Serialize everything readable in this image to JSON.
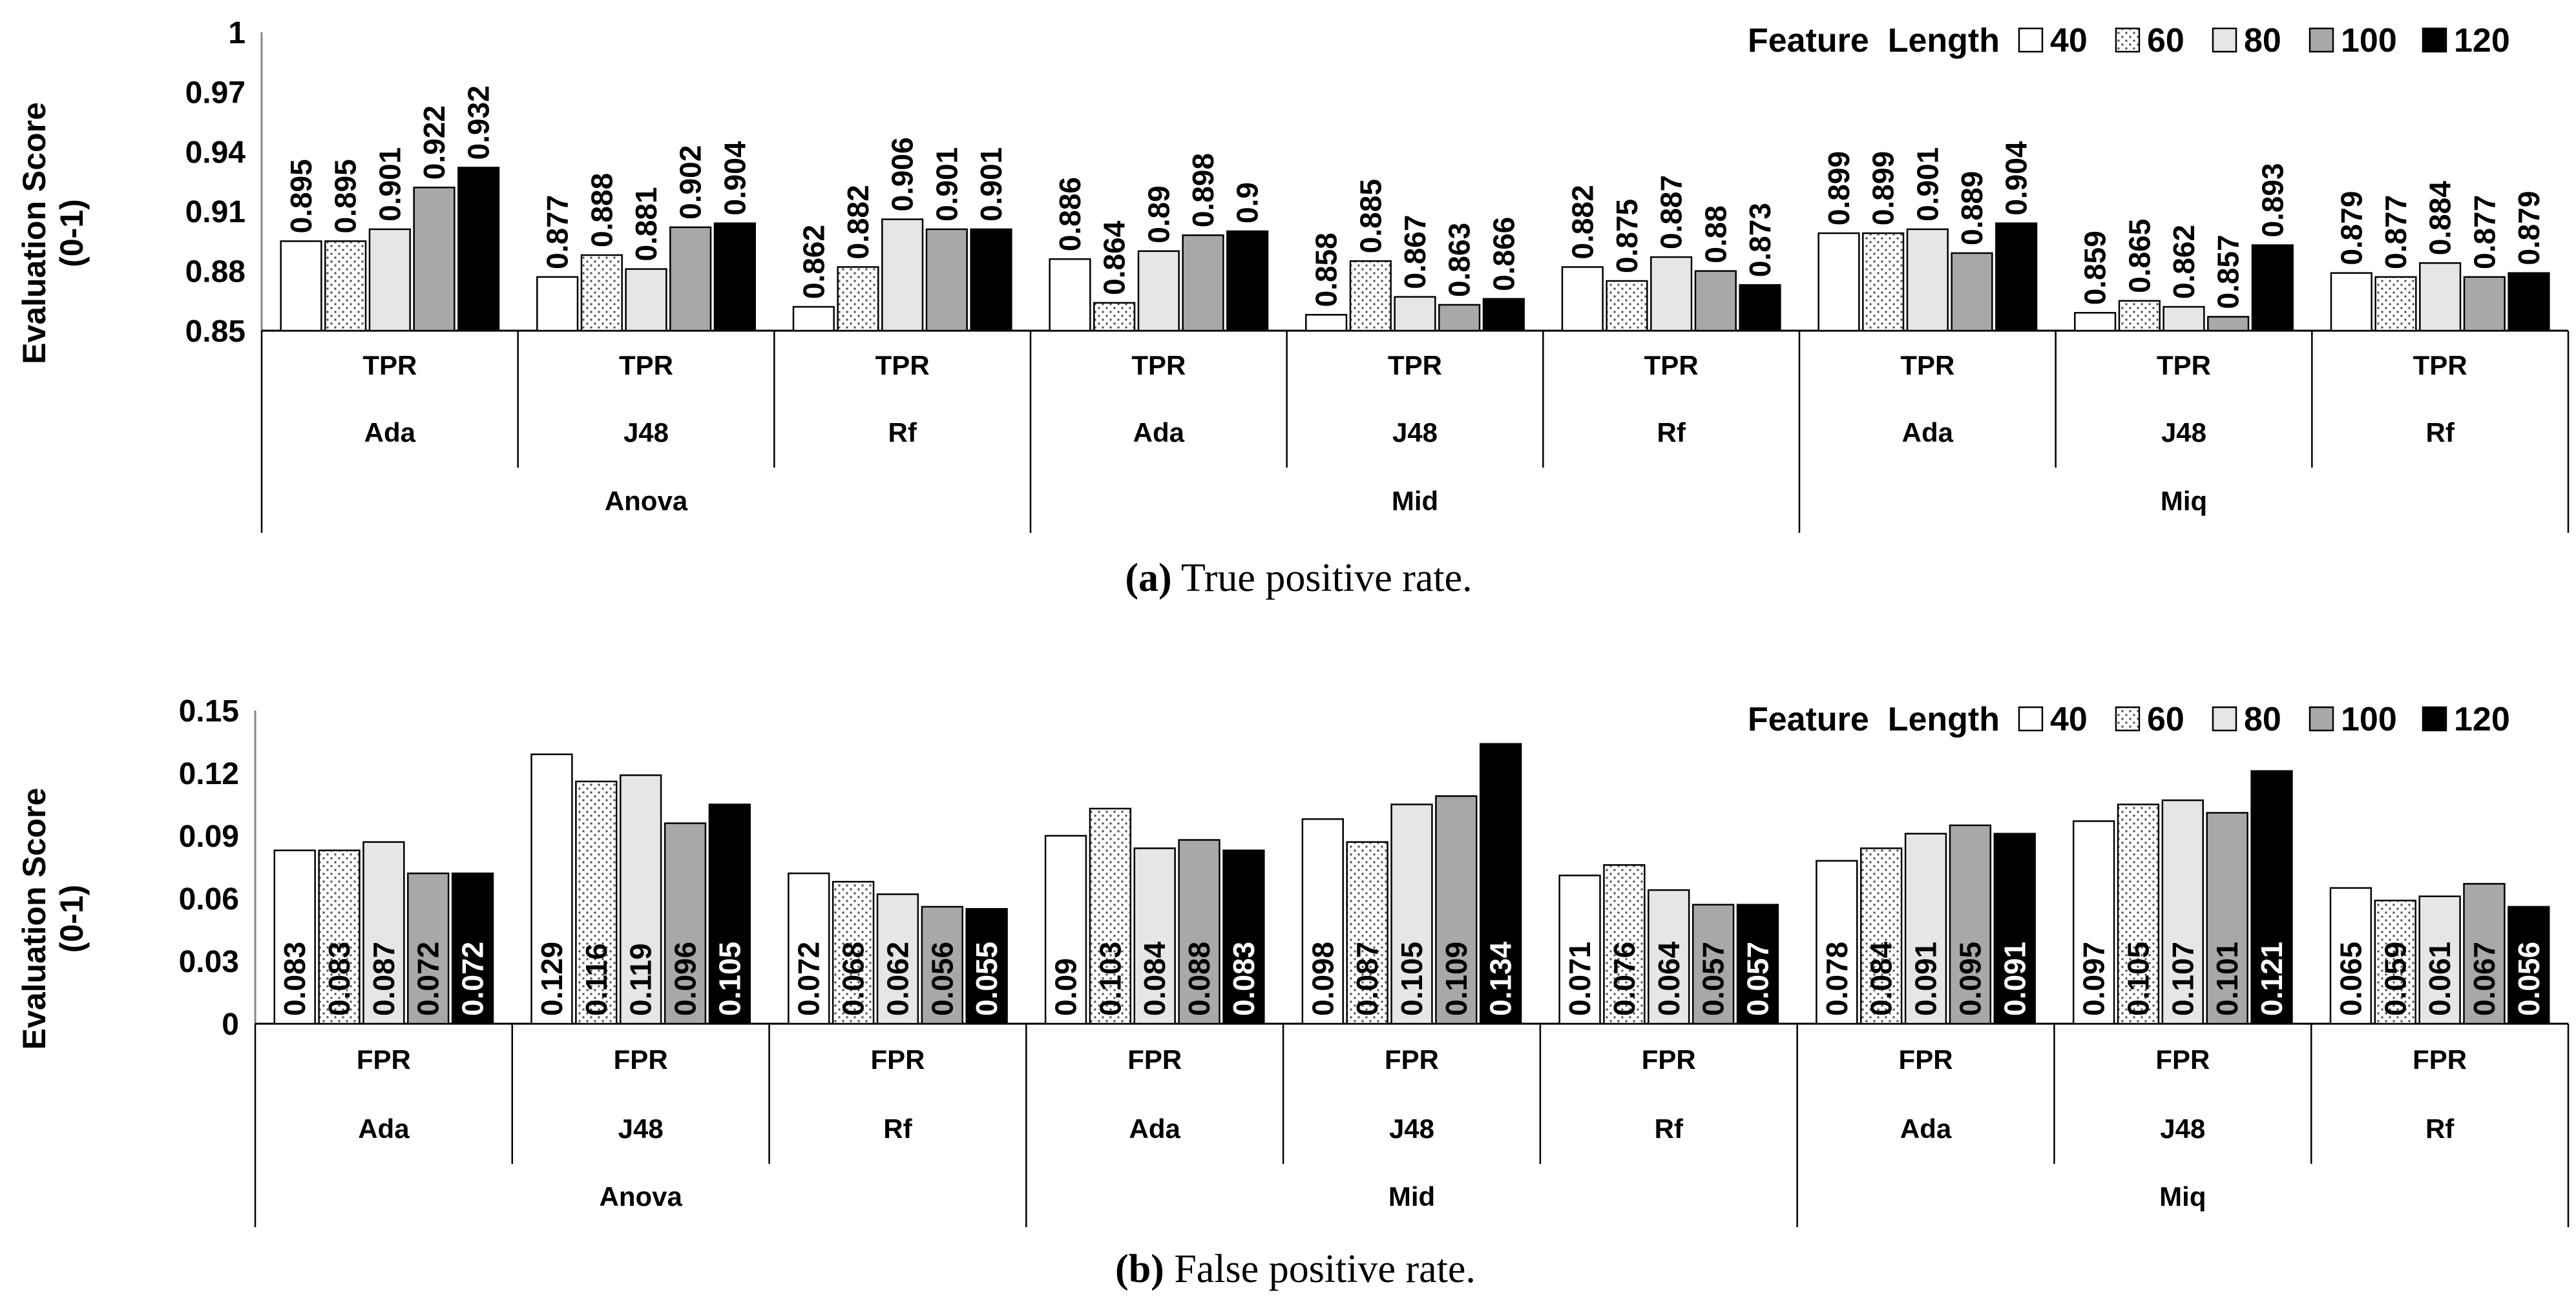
{
  "legend": {
    "title": "Feature  Length",
    "entries": [
      "40",
      "60",
      "80",
      "100",
      "120"
    ]
  },
  "series_styles": [
    {
      "name": "40",
      "fill": "#ffffff",
      "pattern": "none"
    },
    {
      "name": "60",
      "fill": "#ffffff",
      "pattern": "dots"
    },
    {
      "name": "80",
      "fill": "#e6e6e6",
      "pattern": "none"
    },
    {
      "name": "100",
      "fill": "#a8a8a8",
      "pattern": "none"
    },
    {
      "name": "120",
      "fill": "#000000",
      "pattern": "none"
    }
  ],
  "chart_data": [
    {
      "type": "bar",
      "title": "",
      "caption_label": "(a)",
      "caption_text": " True positive rate.",
      "ylabel": "Evaluation Score (0-1)",
      "ylabel_lines": [
        "Evaluation Score",
        "(0-1)"
      ],
      "ylim": [
        0.85,
        1
      ],
      "yticks": [
        "0.85",
        "0.88",
        "0.91",
        "0.94",
        "0.97",
        "1"
      ],
      "ytick_values": [
        0.85,
        0.88,
        0.91,
        0.94,
        0.97,
        1
      ],
      "legend_position": "top-right",
      "label_style": "above",
      "groups": [
        {
          "selector": "Anova",
          "classifier": "Ada",
          "metric": "TPR"
        },
        {
          "selector": "Anova",
          "classifier": "J48",
          "metric": "TPR"
        },
        {
          "selector": "Anova",
          "classifier": "Rf",
          "metric": "TPR"
        },
        {
          "selector": "Mid",
          "classifier": "Ada",
          "metric": "TPR"
        },
        {
          "selector": "Mid",
          "classifier": "J48",
          "metric": "TPR"
        },
        {
          "selector": "Mid",
          "classifier": "Rf",
          "metric": "TPR"
        },
        {
          "selector": "Miq",
          "classifier": "Ada",
          "metric": "TPR"
        },
        {
          "selector": "Miq",
          "classifier": "J48",
          "metric": "TPR"
        },
        {
          "selector": "Miq",
          "classifier": "Rf",
          "metric": "TPR"
        }
      ],
      "selectors": [
        "Anova",
        "Mid",
        "Miq"
      ],
      "series": [
        {
          "name": "40",
          "values": [
            0.895,
            0.877,
            0.862,
            0.886,
            0.858,
            0.882,
            0.899,
            0.859,
            0.879
          ],
          "labels": [
            "0.895",
            "0.877",
            "0.862",
            "0.886",
            "0.858",
            "0.882",
            "0.899",
            "0.859",
            "0.879"
          ]
        },
        {
          "name": "60",
          "values": [
            0.895,
            0.888,
            0.882,
            0.864,
            0.885,
            0.875,
            0.899,
            0.865,
            0.877
          ],
          "labels": [
            "0.895",
            "0.888",
            "0.882",
            "0.864",
            "0.885",
            "0.875",
            "0.899",
            "0.865",
            "0.877"
          ]
        },
        {
          "name": "80",
          "values": [
            0.901,
            0.881,
            0.906,
            0.89,
            0.867,
            0.887,
            0.901,
            0.862,
            0.884
          ],
          "labels": [
            "0.901",
            "0.881",
            "0.906",
            "0.89",
            "0.867",
            "0.887",
            "0.901",
            "0.862",
            "0.884"
          ]
        },
        {
          "name": "100",
          "values": [
            0.922,
            0.902,
            0.901,
            0.898,
            0.863,
            0.88,
            0.889,
            0.857,
            0.877
          ],
          "labels": [
            "0.922",
            "0.902",
            "0.901",
            "0.898",
            "0.863",
            "0.88",
            "0.889",
            "0.857",
            "0.877"
          ]
        },
        {
          "name": "120",
          "values": [
            0.932,
            0.904,
            0.901,
            0.9,
            0.866,
            0.873,
            0.904,
            0.893,
            0.879
          ],
          "labels": [
            "0.932",
            "0.904",
            "0.901",
            "0.9",
            "0.866",
            "0.873",
            "0.904",
            "0.893",
            "0.879"
          ]
        }
      ]
    },
    {
      "type": "bar",
      "title": "",
      "caption_label": "(b)",
      "caption_text": " False positive rate.",
      "ylabel": "Evaluation Score (0-1)",
      "ylabel_lines": [
        "Evaluation Score",
        "(0-1)"
      ],
      "ylim": [
        0,
        0.15
      ],
      "yticks": [
        "0",
        "0.03",
        "0.06",
        "0.09",
        "0.12",
        "0.15"
      ],
      "ytick_values": [
        0,
        0.03,
        0.06,
        0.09,
        0.12,
        0.15
      ],
      "legend_position": "top-right",
      "label_style": "inside",
      "groups": [
        {
          "selector": "Anova",
          "classifier": "Ada",
          "metric": "FPR"
        },
        {
          "selector": "Anova",
          "classifier": "J48",
          "metric": "FPR"
        },
        {
          "selector": "Anova",
          "classifier": "Rf",
          "metric": "FPR"
        },
        {
          "selector": "Mid",
          "classifier": "Ada",
          "metric": "FPR"
        },
        {
          "selector": "Mid",
          "classifier": "J48",
          "metric": "FPR"
        },
        {
          "selector": "Mid",
          "classifier": "Rf",
          "metric": "FPR"
        },
        {
          "selector": "Miq",
          "classifier": "Ada",
          "metric": "FPR"
        },
        {
          "selector": "Miq",
          "classifier": "J48",
          "metric": "FPR"
        },
        {
          "selector": "Miq",
          "classifier": "Rf",
          "metric": "FPR"
        }
      ],
      "selectors": [
        "Anova",
        "Mid",
        "Miq"
      ],
      "series": [
        {
          "name": "40",
          "values": [
            0.083,
            0.129,
            0.072,
            0.09,
            0.098,
            0.071,
            0.078,
            0.097,
            0.065
          ],
          "labels": [
            "0.083",
            "0.129",
            "0.072",
            "0.09",
            "0.098",
            "0.071",
            "0.078",
            "0.097",
            "0.065"
          ]
        },
        {
          "name": "60",
          "values": [
            0.083,
            0.116,
            0.068,
            0.103,
            0.087,
            0.076,
            0.084,
            0.105,
            0.059
          ],
          "labels": [
            "0.083",
            "0.116",
            "0.068",
            "0.103",
            "0.087",
            "0.076",
            "0.084",
            "0.105",
            "0.059"
          ]
        },
        {
          "name": "80",
          "values": [
            0.087,
            0.119,
            0.062,
            0.084,
            0.105,
            0.064,
            0.091,
            0.107,
            0.061
          ],
          "labels": [
            "0.087",
            "0.119",
            "0.062",
            "0.084",
            "0.105",
            "0.064",
            "0.091",
            "0.107",
            "0.061"
          ]
        },
        {
          "name": "100",
          "values": [
            0.072,
            0.096,
            0.056,
            0.088,
            0.109,
            0.057,
            0.095,
            0.101,
            0.067
          ],
          "labels": [
            "0.072",
            "0.096",
            "0.056",
            "0.088",
            "0.109",
            "0.057",
            "0.095",
            "0.101",
            "0.067"
          ]
        },
        {
          "name": "120",
          "values": [
            0.072,
            0.105,
            0.055,
            0.083,
            0.134,
            0.057,
            0.091,
            0.121,
            0.056
          ],
          "labels": [
            "0.072",
            "0.105",
            "0.055",
            "0.083",
            "0.134",
            "0.057",
            "0.091",
            "0.121",
            "0.056"
          ]
        }
      ]
    }
  ]
}
